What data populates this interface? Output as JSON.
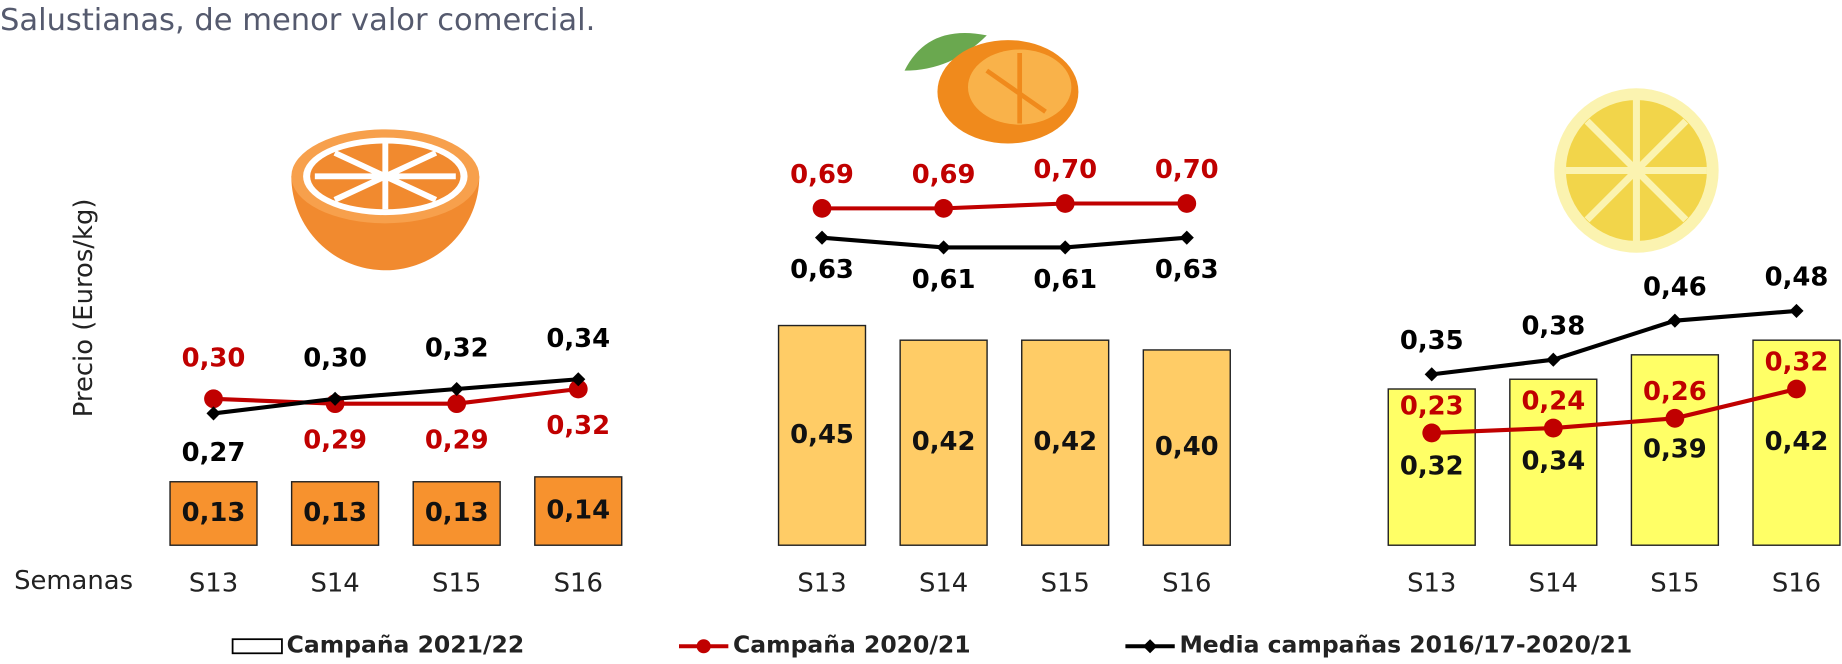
{
  "caption": "Salustianas, de menor valor comercial.",
  "y_label": "Precio (Euros/kg)",
  "x_label": "Semanas",
  "legend": [
    {
      "name": "Campaña 2021/22",
      "color": "#ffffff"
    },
    {
      "name": "Campaña 2020/21",
      "color": "#c00000"
    },
    {
      "name": "Media campañas 2016/17-2020/21",
      "color": "#000000"
    }
  ],
  "chart_data": [
    {
      "type": "bar",
      "categories": [
        "S13",
        "S14",
        "S15",
        "S16"
      ],
      "ylim": [
        0,
        0.9
      ],
      "series": [
        {
          "type": "bar",
          "color": "#f7922e",
          "values": [
            0.13,
            0.13,
            0.13,
            0.14
          ],
          "value_labels": [
            "0,13",
            "0,13",
            "0,13",
            "0,14"
          ]
        },
        {
          "type": "line",
          "color": "#c00000",
          "values": [
            0.3,
            0.29,
            0.29,
            0.32
          ],
          "value_labels": [
            "0,30",
            "0,29",
            "0,29",
            "0,32"
          ]
        },
        {
          "type": "line",
          "color": "#000000",
          "values": [
            0.27,
            0.3,
            0.32,
            0.34
          ],
          "value_labels": [
            "0,27",
            "0,30",
            "0,32",
            "0,34"
          ]
        }
      ]
    },
    {
      "type": "bar",
      "categories": [
        "S13",
        "S14",
        "S15",
        "S16"
      ],
      "ylim": [
        0,
        0.9
      ],
      "series": [
        {
          "type": "bar",
          "color": "#ffcc66",
          "values": [
            0.45,
            0.42,
            0.42,
            0.4
          ],
          "value_labels": [
            "0,45",
            "0,42",
            "0,42",
            "0,40"
          ]
        },
        {
          "type": "line",
          "color": "#c00000",
          "values": [
            0.69,
            0.69,
            0.7,
            0.7
          ],
          "value_labels": [
            "0,69",
            "0,69",
            "0,70",
            "0,70"
          ]
        },
        {
          "type": "line",
          "color": "#000000",
          "values": [
            0.63,
            0.61,
            0.61,
            0.63
          ],
          "value_labels": [
            "0,63",
            "0,61",
            "0,61",
            "0,63"
          ]
        }
      ]
    },
    {
      "type": "bar",
      "categories": [
        "S13",
        "S14",
        "S15",
        "S16"
      ],
      "ylim": [
        0,
        0.9
      ],
      "series": [
        {
          "type": "bar",
          "color": "#ffff66",
          "values": [
            0.32,
            0.34,
            0.39,
            0.42
          ],
          "value_labels": [
            "0,32",
            "0,34",
            "0,39",
            "0,42"
          ]
        },
        {
          "type": "line",
          "color": "#c00000",
          "values": [
            0.23,
            0.24,
            0.26,
            0.32
          ],
          "value_labels": [
            "0,23",
            "0,24",
            "0,26",
            "0,32"
          ]
        },
        {
          "type": "line",
          "color": "#000000",
          "values": [
            0.35,
            0.38,
            0.46,
            0.48
          ],
          "value_labels": [
            "0,35",
            "0,38",
            "0,46",
            "0,48"
          ]
        }
      ]
    }
  ]
}
